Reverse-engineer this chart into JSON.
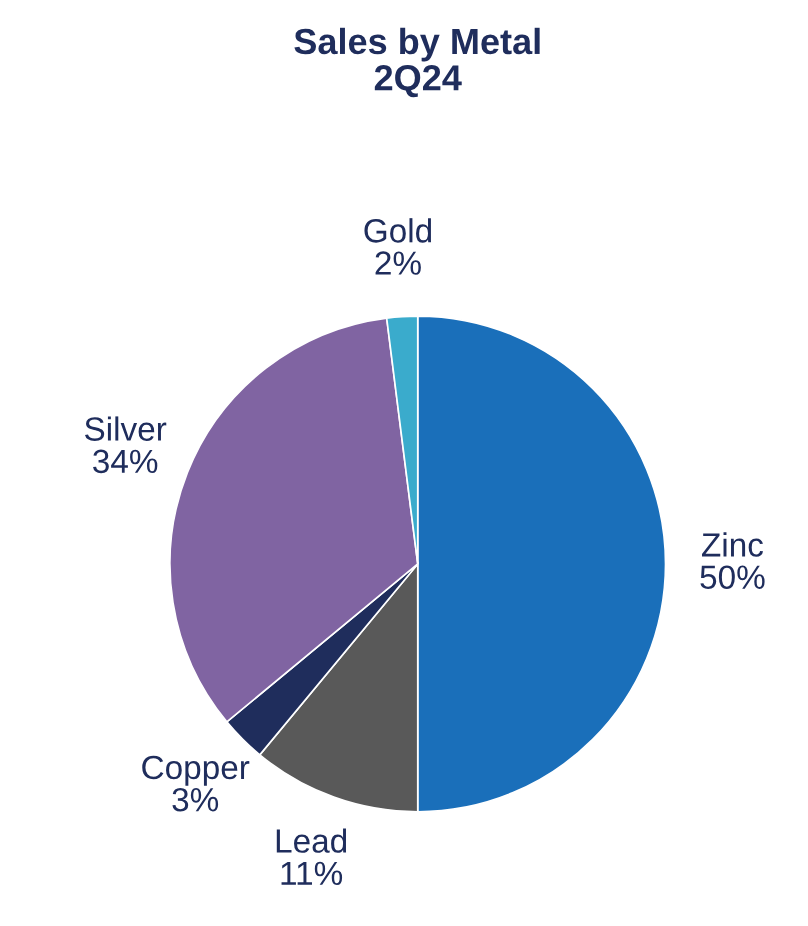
{
  "chart_data": {
    "type": "pie",
    "title": "Sales by Metal\n2Q24",
    "categories": [
      "Zinc",
      "Lead",
      "Copper",
      "Silver",
      "Gold"
    ],
    "values": [
      50,
      11,
      3,
      34,
      2
    ],
    "value_labels": [
      "50%",
      "11%",
      "3%",
      "34%",
      "2%"
    ],
    "colors": [
      "#1a6fba",
      "#595959",
      "#1f2d5c",
      "#8064a2",
      "#3aabcc"
    ],
    "legend": false
  }
}
